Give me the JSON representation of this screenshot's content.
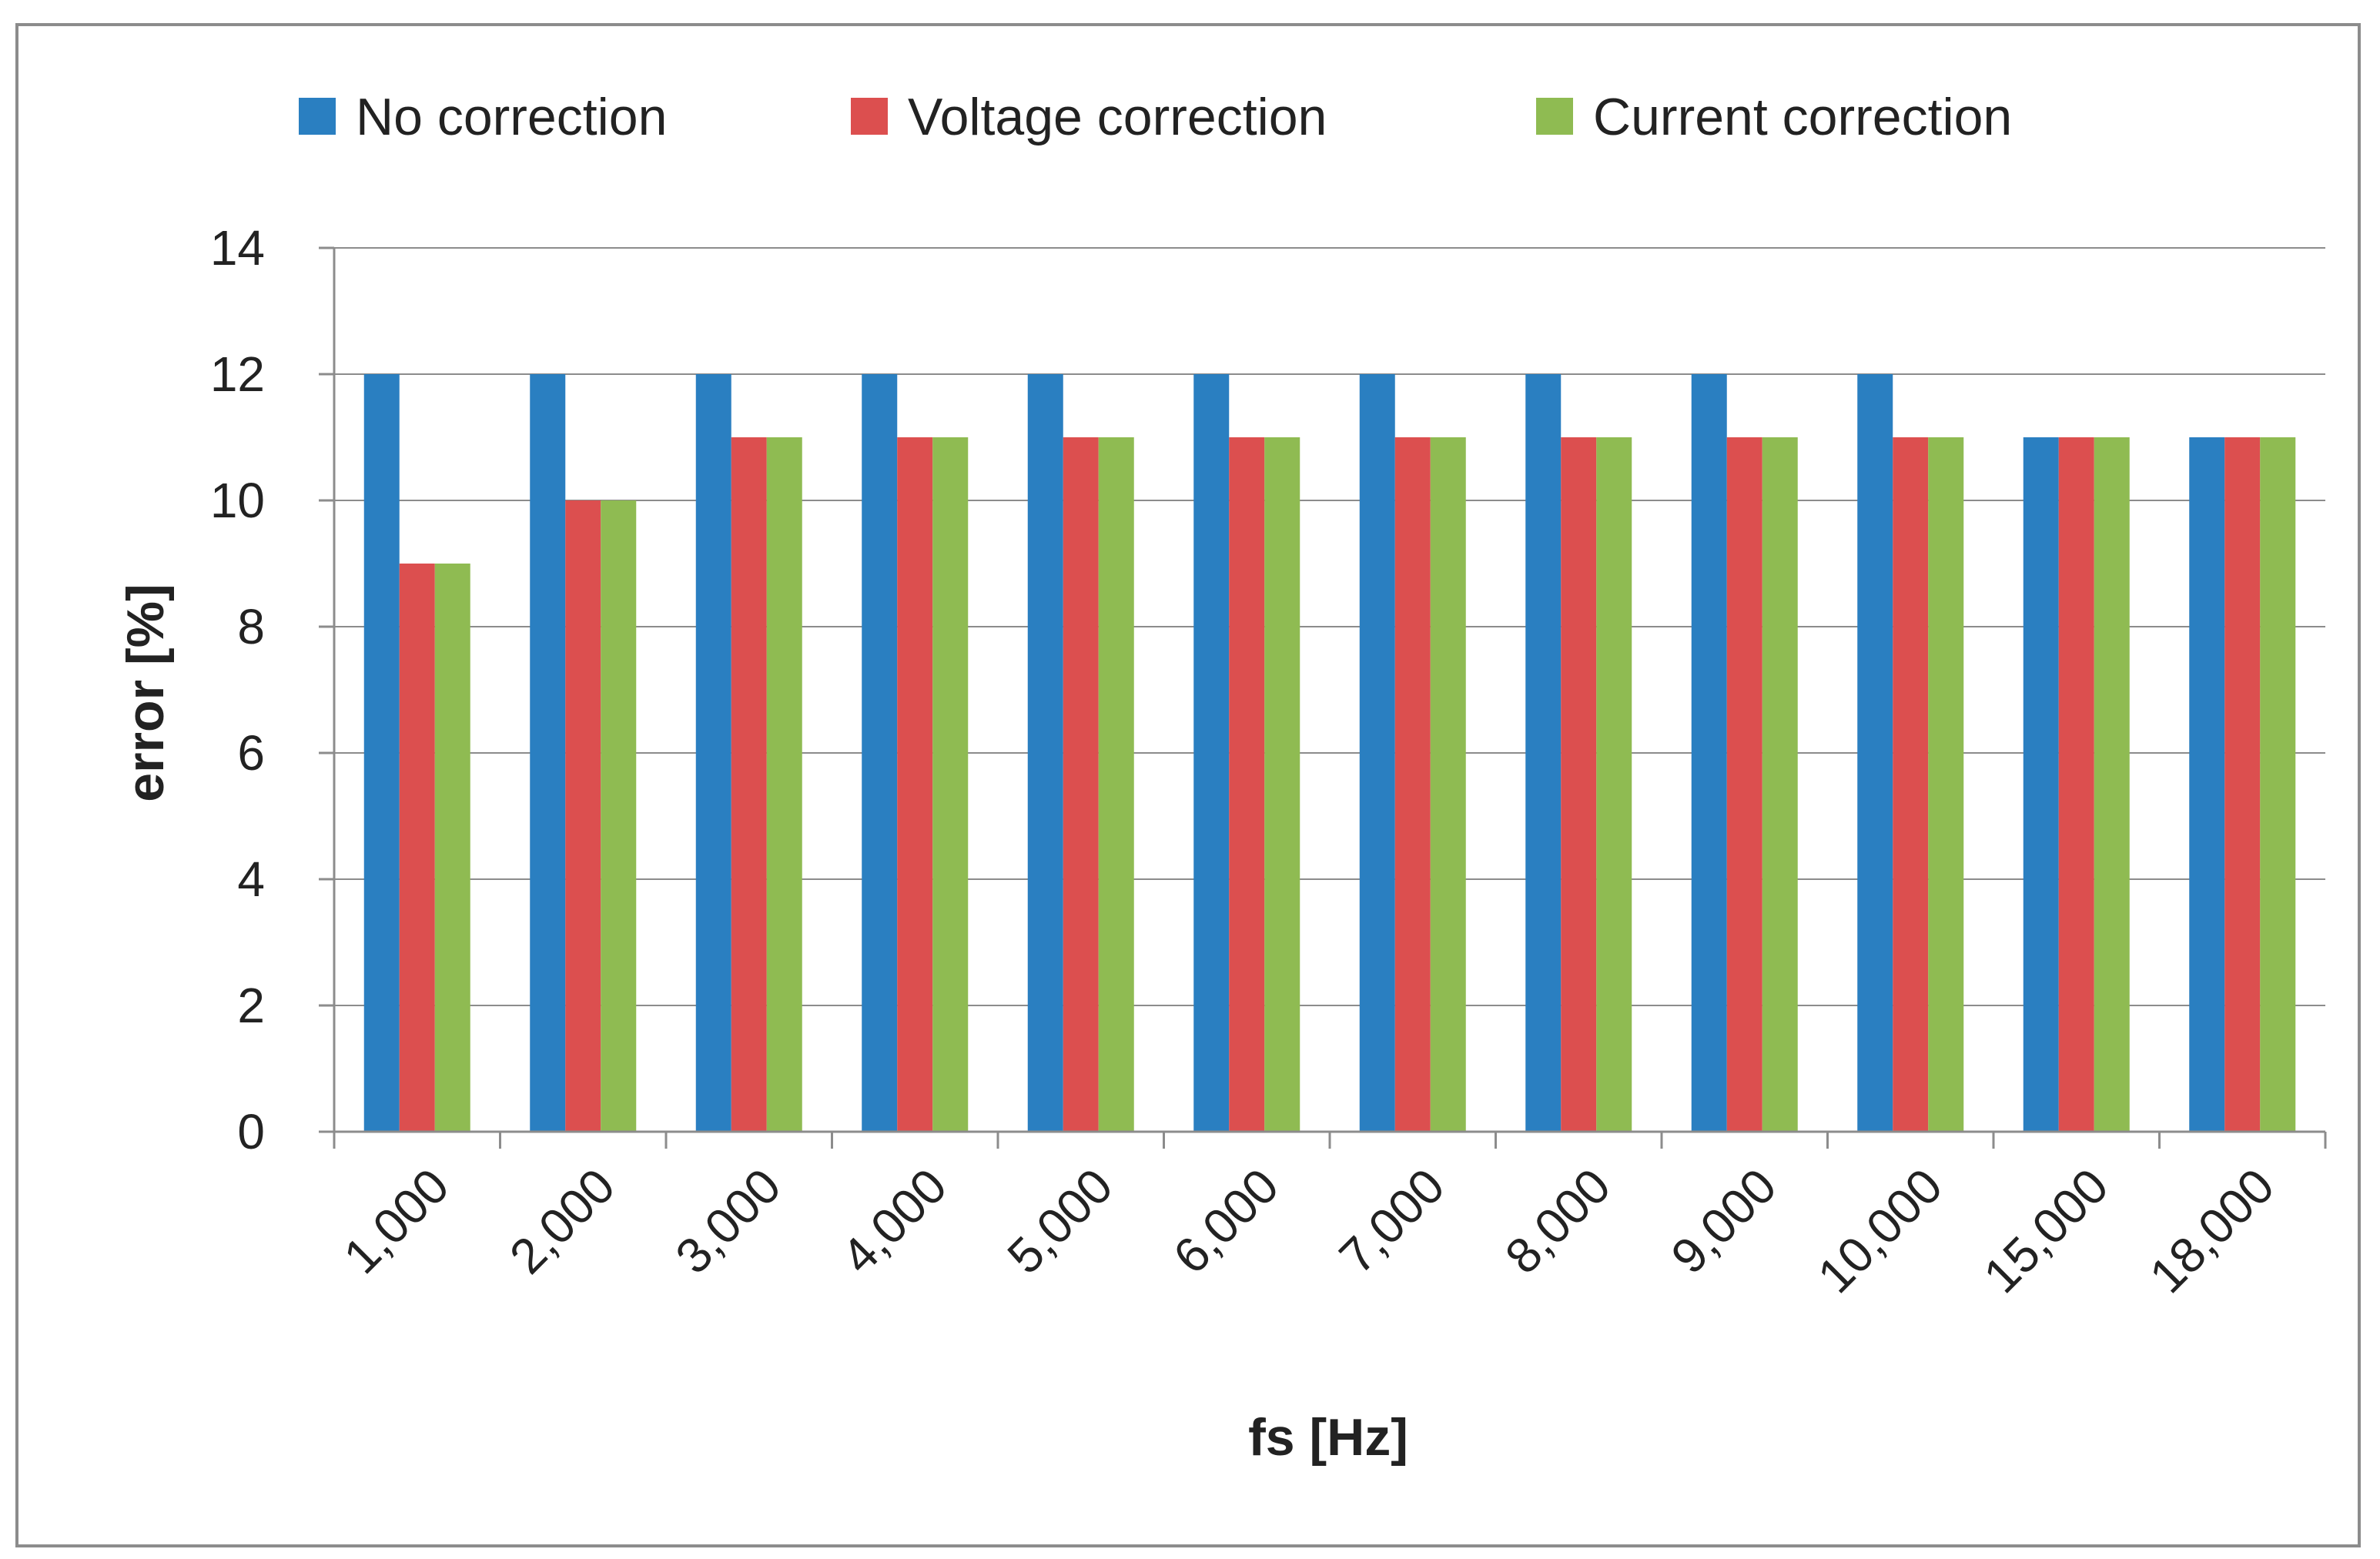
{
  "chart_data": {
    "type": "bar",
    "title": "",
    "xlabel": "fs [Hz]",
    "ylabel": "error [%]",
    "ylim": [
      0,
      14
    ],
    "yticks": [
      0,
      2,
      4,
      6,
      8,
      10,
      12,
      14
    ],
    "grid": true,
    "legend_position": "top",
    "categories": [
      "1,000",
      "2,000",
      "3,000",
      "4,000",
      "5,000",
      "6,000",
      "7,000",
      "8,000",
      "9,000",
      "10,000",
      "15,000",
      "18,000"
    ],
    "series": [
      {
        "name": "No correction",
        "color": "#2a7fc1",
        "values": [
          12,
          12,
          12,
          12,
          12,
          12,
          12,
          12,
          12,
          12,
          11,
          11
        ]
      },
      {
        "name": "Voltage correction",
        "color": "#dc4f4f",
        "values": [
          9,
          10,
          11,
          11,
          11,
          11,
          11,
          11,
          11,
          11,
          11,
          11
        ]
      },
      {
        "name": "Current correction",
        "color": "#8fbb52",
        "values": [
          9,
          10,
          11,
          11,
          11,
          11,
          11,
          11,
          11,
          11,
          11,
          11
        ]
      }
    ]
  }
}
